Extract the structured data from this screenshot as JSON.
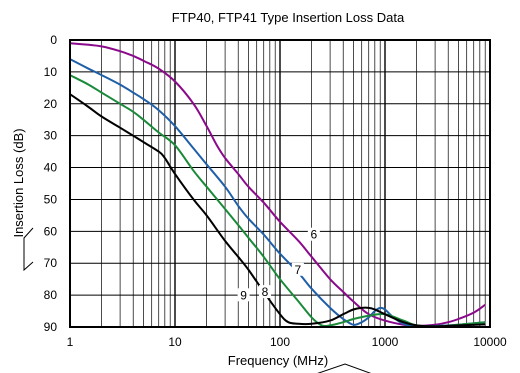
{
  "chart_data": {
    "type": "line",
    "title": "FTP40,  FTP41 Type Insertion Loss Data",
    "xlabel": "Frequency (MHz)",
    "ylabel": "Insertion Loss (dB)",
    "x_scale": "log",
    "xlim": [
      1,
      10000
    ],
    "ylim": [
      0,
      90
    ],
    "y_inverted": true,
    "grid": true,
    "x_ticks": [
      {
        "value": 1,
        "label": "1"
      },
      {
        "value": 10,
        "label": "10"
      },
      {
        "value": 100,
        "label": "100"
      },
      {
        "value": 1000,
        "label": "1000"
      },
      {
        "value": 10000,
        "label": "10000"
      }
    ],
    "y_ticks": [
      {
        "value": 0,
        "label": "0"
      },
      {
        "value": 10,
        "label": "10"
      },
      {
        "value": 20,
        "label": "20"
      },
      {
        "value": 30,
        "label": "30"
      },
      {
        "value": 40,
        "label": "40"
      },
      {
        "value": 50,
        "label": "50"
      },
      {
        "value": 60,
        "label": "60"
      },
      {
        "value": 70,
        "label": "70"
      },
      {
        "value": 80,
        "label": "80"
      },
      {
        "value": 90,
        "label": "90"
      }
    ],
    "series": [
      {
        "name": "6",
        "color": "#8b0a8b",
        "label_at": {
          "x": 210,
          "y": 62
        },
        "points": [
          [
            1,
            1
          ],
          [
            1.5,
            1.5
          ],
          [
            2,
            2
          ],
          [
            3,
            3.5
          ],
          [
            4,
            5
          ],
          [
            5,
            6.5
          ],
          [
            7,
            9
          ],
          [
            10,
            13
          ],
          [
            15,
            20
          ],
          [
            20,
            27
          ],
          [
            25,
            33
          ],
          [
            30,
            37
          ],
          [
            40,
            42
          ],
          [
            50,
            46
          ],
          [
            70,
            51
          ],
          [
            100,
            57
          ],
          [
            150,
            63
          ],
          [
            200,
            68
          ],
          [
            300,
            75
          ],
          [
            400,
            79
          ],
          [
            500,
            82
          ],
          [
            700,
            86
          ],
          [
            1000,
            88
          ],
          [
            1500,
            89.3
          ],
          [
            2000,
            89.7
          ],
          [
            3000,
            89.3
          ],
          [
            4000,
            88.5
          ],
          [
            5000,
            87.5
          ],
          [
            7000,
            85.5
          ],
          [
            9000,
            83
          ]
        ]
      },
      {
        "name": "7",
        "color": "#1f5fa8",
        "label_at": {
          "x": 148,
          "y": 73
        },
        "points": [
          [
            1,
            6
          ],
          [
            1.5,
            9
          ],
          [
            2,
            11
          ],
          [
            3,
            14
          ],
          [
            4,
            16.5
          ],
          [
            5,
            18.5
          ],
          [
            7,
            22
          ],
          [
            10,
            27
          ],
          [
            15,
            34
          ],
          [
            20,
            39
          ],
          [
            30,
            46
          ],
          [
            40,
            52
          ],
          [
            50,
            56
          ],
          [
            70,
            61
          ],
          [
            100,
            67
          ],
          [
            150,
            73
          ],
          [
            200,
            78
          ],
          [
            300,
            84
          ],
          [
            400,
            87.5
          ],
          [
            500,
            89.3
          ],
          [
            600,
            88.5
          ],
          [
            700,
            87
          ],
          [
            800,
            85
          ],
          [
            900,
            84
          ],
          [
            1000,
            84.5
          ],
          [
            1200,
            87
          ],
          [
            1500,
            89
          ],
          [
            2000,
            89.8
          ],
          [
            3000,
            89.7
          ],
          [
            5000,
            89.3
          ],
          [
            9000,
            88.5
          ]
        ]
      },
      {
        "name": "8",
        "color": "#1a8a3a",
        "label_at": {
          "x": 72,
          "y": 80
        },
        "points": [
          [
            1,
            11
          ],
          [
            1.5,
            14
          ],
          [
            2,
            16.5
          ],
          [
            3,
            20
          ],
          [
            4,
            22.5
          ],
          [
            5,
            25
          ],
          [
            7,
            29
          ],
          [
            10,
            33
          ],
          [
            15,
            41
          ],
          [
            20,
            46
          ],
          [
            30,
            53
          ],
          [
            40,
            58
          ],
          [
            50,
            62
          ],
          [
            70,
            68
          ],
          [
            100,
            75
          ],
          [
            150,
            82
          ],
          [
            200,
            87
          ],
          [
            250,
            89.5
          ],
          [
            300,
            89.5
          ],
          [
            400,
            88.5
          ],
          [
            500,
            87.5
          ],
          [
            700,
            86.5
          ],
          [
            1000,
            86
          ],
          [
            1500,
            88
          ],
          [
            2000,
            89.5
          ],
          [
            3000,
            89.8
          ],
          [
            5000,
            89.3
          ],
          [
            9000,
            88.5
          ]
        ]
      },
      {
        "name": "9",
        "color": "#000000",
        "label_at": {
          "x": 45,
          "y": 81
        },
        "points": [
          [
            1,
            17
          ],
          [
            1.5,
            21
          ],
          [
            2,
            24
          ],
          [
            3,
            27.5
          ],
          [
            4,
            30
          ],
          [
            5,
            32
          ],
          [
            7,
            35
          ],
          [
            8,
            37
          ],
          [
            10,
            42
          ],
          [
            15,
            50
          ],
          [
            20,
            55
          ],
          [
            30,
            63
          ],
          [
            40,
            68
          ],
          [
            50,
            72
          ],
          [
            70,
            79
          ],
          [
            100,
            86
          ],
          [
            120,
            88.5
          ],
          [
            150,
            89
          ],
          [
            200,
            89
          ],
          [
            300,
            88
          ],
          [
            400,
            86
          ],
          [
            500,
            84.5
          ],
          [
            600,
            84
          ],
          [
            700,
            84
          ],
          [
            800,
            84.5
          ],
          [
            1000,
            86
          ],
          [
            1500,
            88.5
          ],
          [
            2000,
            89.5
          ],
          [
            3000,
            89.8
          ],
          [
            5000,
            89.5
          ],
          [
            9000,
            89.2
          ]
        ]
      }
    ]
  }
}
